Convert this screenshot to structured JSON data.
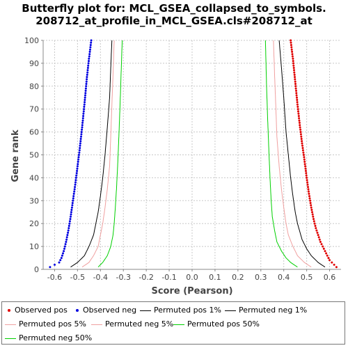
{
  "chart_data": {
    "type": "scatter",
    "title": "Butterfly plot for: MCL_GSEA_collapsed_to_symbols.",
    "subtitle": "208712_at_profile_in_MCL_GSEA.cls#208712_at",
    "xlabel": "Score (Pearson)",
    "ylabel": "Gene rank",
    "xlim": [
      -0.65,
      0.65
    ],
    "ylim": [
      0,
      100
    ],
    "x_ticks": [
      "-0.6",
      "-0.5",
      "-0.4",
      "-0.3",
      "-0.2",
      "-0.1",
      "0.0",
      "0.1",
      "0.2",
      "0.3",
      "0.4",
      "0.5",
      "0.6"
    ],
    "x_tick_values": [
      -0.6,
      -0.5,
      -0.4,
      -0.3,
      -0.2,
      -0.1,
      0.0,
      0.1,
      0.2,
      0.3,
      0.4,
      0.5,
      0.6
    ],
    "y_ticks": [
      "0",
      "10",
      "20",
      "30",
      "40",
      "50",
      "60",
      "70",
      "80",
      "90",
      "100"
    ],
    "y_tick_values": [
      0,
      10,
      20,
      30,
      40,
      50,
      60,
      70,
      80,
      90,
      100
    ],
    "grid": true,
    "legend_position": "bottom",
    "series": [
      {
        "name": "Observed pos",
        "kind": "points",
        "color": "#e00000",
        "points": [
          [
            0.63,
            1
          ],
          [
            0.62,
            2
          ],
          [
            0.6,
            4
          ],
          [
            0.59,
            6
          ],
          [
            0.58,
            8
          ],
          [
            0.57,
            10
          ],
          [
            0.56,
            12
          ],
          [
            0.55,
            15
          ],
          [
            0.54,
            18
          ],
          [
            0.53,
            22
          ],
          [
            0.52,
            27
          ],
          [
            0.51,
            33
          ],
          [
            0.5,
            40
          ],
          [
            0.49,
            48
          ],
          [
            0.48,
            55
          ],
          [
            0.47,
            63
          ],
          [
            0.46,
            72
          ],
          [
            0.45,
            82
          ],
          [
            0.44,
            92
          ],
          [
            0.43,
            100
          ]
        ]
      },
      {
        "name": "Observed neg",
        "kind": "points",
        "color": "#0000e0",
        "points": [
          [
            -0.62,
            1
          ],
          [
            -0.6,
            2
          ],
          [
            -0.58,
            3
          ],
          [
            -0.57,
            5
          ],
          [
            -0.56,
            8
          ],
          [
            -0.55,
            12
          ],
          [
            -0.54,
            17
          ],
          [
            -0.53,
            23
          ],
          [
            -0.52,
            30
          ],
          [
            -0.51,
            37
          ],
          [
            -0.5,
            45
          ],
          [
            -0.49,
            53
          ],
          [
            -0.48,
            62
          ],
          [
            -0.47,
            72
          ],
          [
            -0.46,
            83
          ],
          [
            -0.45,
            92
          ],
          [
            -0.44,
            100
          ]
        ]
      },
      {
        "name": "Permuted pos 1%",
        "kind": "line",
        "color": "#000000",
        "points": [
          [
            0.58,
            1
          ],
          [
            0.55,
            3
          ],
          [
            0.52,
            6
          ],
          [
            0.5,
            9
          ],
          [
            0.48,
            13
          ],
          [
            0.46,
            20
          ],
          [
            0.45,
            25
          ],
          [
            0.44,
            32
          ],
          [
            0.43,
            40
          ],
          [
            0.42,
            50
          ],
          [
            0.41,
            60
          ],
          [
            0.4,
            75
          ],
          [
            0.39,
            88
          ],
          [
            0.38,
            100
          ]
        ]
      },
      {
        "name": "Permuted neg 1%",
        "kind": "line",
        "color": "#000000",
        "points": [
          [
            -0.53,
            1
          ],
          [
            -0.5,
            3
          ],
          [
            -0.47,
            6
          ],
          [
            -0.45,
            10
          ],
          [
            -0.43,
            15
          ],
          [
            -0.42,
            20
          ],
          [
            -0.41,
            25
          ],
          [
            -0.4,
            32
          ],
          [
            -0.39,
            40
          ],
          [
            -0.38,
            50
          ],
          [
            -0.37,
            62
          ],
          [
            -0.36,
            75
          ],
          [
            -0.355,
            88
          ],
          [
            -0.35,
            100
          ]
        ]
      },
      {
        "name": "Permuted pos 5%",
        "kind": "line",
        "color": "#f0a0a0",
        "points": [
          [
            0.52,
            1
          ],
          [
            0.49,
            3
          ],
          [
            0.46,
            6
          ],
          [
            0.44,
            10
          ],
          [
            0.42,
            15
          ],
          [
            0.41,
            20
          ],
          [
            0.4,
            27
          ],
          [
            0.39,
            35
          ],
          [
            0.38,
            45
          ],
          [
            0.37,
            58
          ],
          [
            0.365,
            72
          ],
          [
            0.36,
            85
          ],
          [
            0.355,
            100
          ]
        ]
      },
      {
        "name": "Permuted neg 5%",
        "kind": "line",
        "color": "#f0a0a0",
        "points": [
          [
            -0.48,
            1
          ],
          [
            -0.45,
            3
          ],
          [
            -0.43,
            6
          ],
          [
            -0.41,
            10
          ],
          [
            -0.4,
            15
          ],
          [
            -0.39,
            20
          ],
          [
            -0.38,
            27
          ],
          [
            -0.37,
            35
          ],
          [
            -0.36,
            45
          ],
          [
            -0.355,
            58
          ],
          [
            -0.35,
            72
          ],
          [
            -0.345,
            85
          ],
          [
            -0.34,
            100
          ]
        ]
      },
      {
        "name": "Permuted pos 50%",
        "kind": "line",
        "color": "#00d000",
        "points": [
          [
            0.46,
            1
          ],
          [
            0.43,
            3
          ],
          [
            0.41,
            5
          ],
          [
            0.39,
            8
          ],
          [
            0.37,
            12
          ],
          [
            0.36,
            17
          ],
          [
            0.35,
            23
          ],
          [
            0.345,
            30
          ],
          [
            0.34,
            40
          ],
          [
            0.335,
            52
          ],
          [
            0.33,
            65
          ],
          [
            0.325,
            80
          ],
          [
            0.32,
            100
          ]
        ]
      },
      {
        "name": "Permuted neg 50%",
        "kind": "line",
        "color": "#00d000",
        "points": [
          [
            -0.41,
            1
          ],
          [
            -0.39,
            3
          ],
          [
            -0.37,
            6
          ],
          [
            -0.355,
            10
          ],
          [
            -0.345,
            15
          ],
          [
            -0.34,
            20
          ],
          [
            -0.335,
            27
          ],
          [
            -0.33,
            35
          ],
          [
            -0.325,
            45
          ],
          [
            -0.32,
            57
          ],
          [
            -0.315,
            70
          ],
          [
            -0.31,
            85
          ],
          [
            -0.305,
            100
          ]
        ]
      }
    ]
  }
}
